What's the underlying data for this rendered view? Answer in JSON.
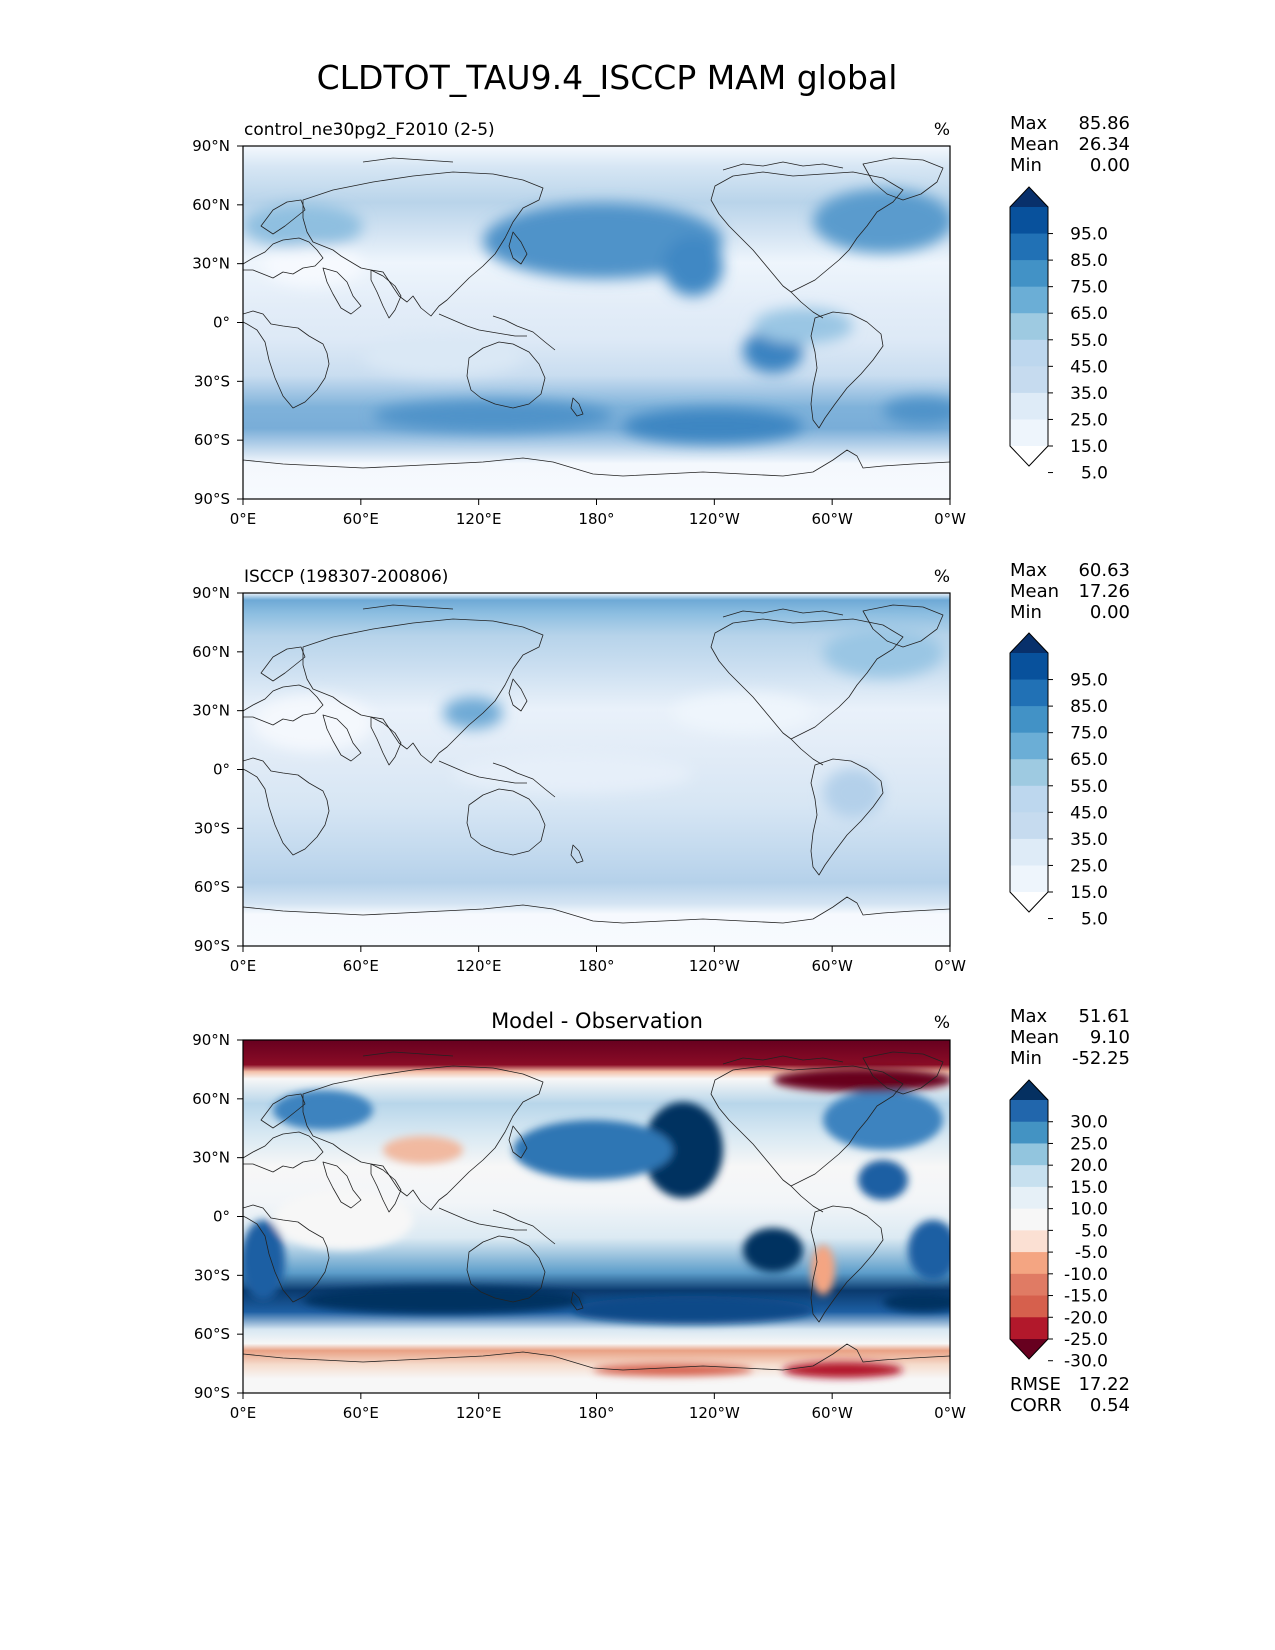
{
  "title": "CLDTOT_TAU9.4_ISCCP MAM global",
  "x_ticks": [
    "0°E",
    "60°E",
    "120°E",
    "180°",
    "120°W",
    "60°W",
    "0°W"
  ],
  "y_ticks": [
    "90°N",
    "60°N",
    "30°N",
    "0°",
    "30°S",
    "60°S",
    "90°S"
  ],
  "panels": [
    {
      "id": "test",
      "left_title": "control_ne30pg2_F2010 (2-5)",
      "center_title": "",
      "units": "%",
      "stats": [
        {
          "label": "Max",
          "value": "85.86"
        },
        {
          "label": "Mean",
          "value": "26.34"
        },
        {
          "label": "Min",
          "value": "0.00"
        }
      ],
      "colorbar": {
        "labels": [
          "95.0",
          "85.0",
          "75.0",
          "65.0",
          "55.0",
          "45.0",
          "35.0",
          "25.0",
          "15.0",
          "5.0"
        ],
        "colors": [
          "#08306b",
          "#08519c",
          "#2171b5",
          "#4292c6",
          "#6baed6",
          "#9ecae1",
          "#bdd7ee",
          "#c6dbef",
          "#deebf7",
          "#eef5fc",
          "#ffffff"
        ]
      },
      "extra_stats": []
    },
    {
      "id": "reference",
      "left_title": "ISCCP (198307-200806)",
      "center_title": "",
      "units": "%",
      "stats": [
        {
          "label": "Max",
          "value": "60.63"
        },
        {
          "label": "Mean",
          "value": "17.26"
        },
        {
          "label": "Min",
          "value": "0.00"
        }
      ],
      "colorbar": {
        "labels": [
          "95.0",
          "85.0",
          "75.0",
          "65.0",
          "55.0",
          "45.0",
          "35.0",
          "25.0",
          "15.0",
          "5.0"
        ],
        "colors": [
          "#08306b",
          "#08519c",
          "#2171b5",
          "#4292c6",
          "#6baed6",
          "#9ecae1",
          "#bdd7ee",
          "#c6dbef",
          "#deebf7",
          "#eef5fc",
          "#ffffff"
        ]
      },
      "extra_stats": []
    },
    {
      "id": "diff",
      "left_title": "",
      "center_title": "Model - Observation",
      "units": "%",
      "stats": [
        {
          "label": "Max",
          "value": "51.61"
        },
        {
          "label": "Mean",
          "value": "9.10"
        },
        {
          "label": "Min",
          "value": "-52.25"
        }
      ],
      "colorbar": {
        "labels": [
          "30.0",
          "25.0",
          "20.0",
          "15.0",
          "10.0",
          "5.0",
          "-5.0",
          "-10.0",
          "-15.0",
          "-20.0",
          "-25.0",
          "-30.0"
        ],
        "colors": [
          "#053061",
          "#2166ac",
          "#4393c3",
          "#92c5de",
          "#c7e0ef",
          "#e6f0f7",
          "#f7f7f7",
          "#fbe0d3",
          "#f4a582",
          "#e07b64",
          "#d6604d",
          "#b2182b",
          "#67001f"
        ]
      },
      "extra_stats": [
        {
          "label": "RMSE",
          "value": "17.22"
        },
        {
          "label": "CORR",
          "value": "0.54"
        }
      ]
    }
  ]
}
